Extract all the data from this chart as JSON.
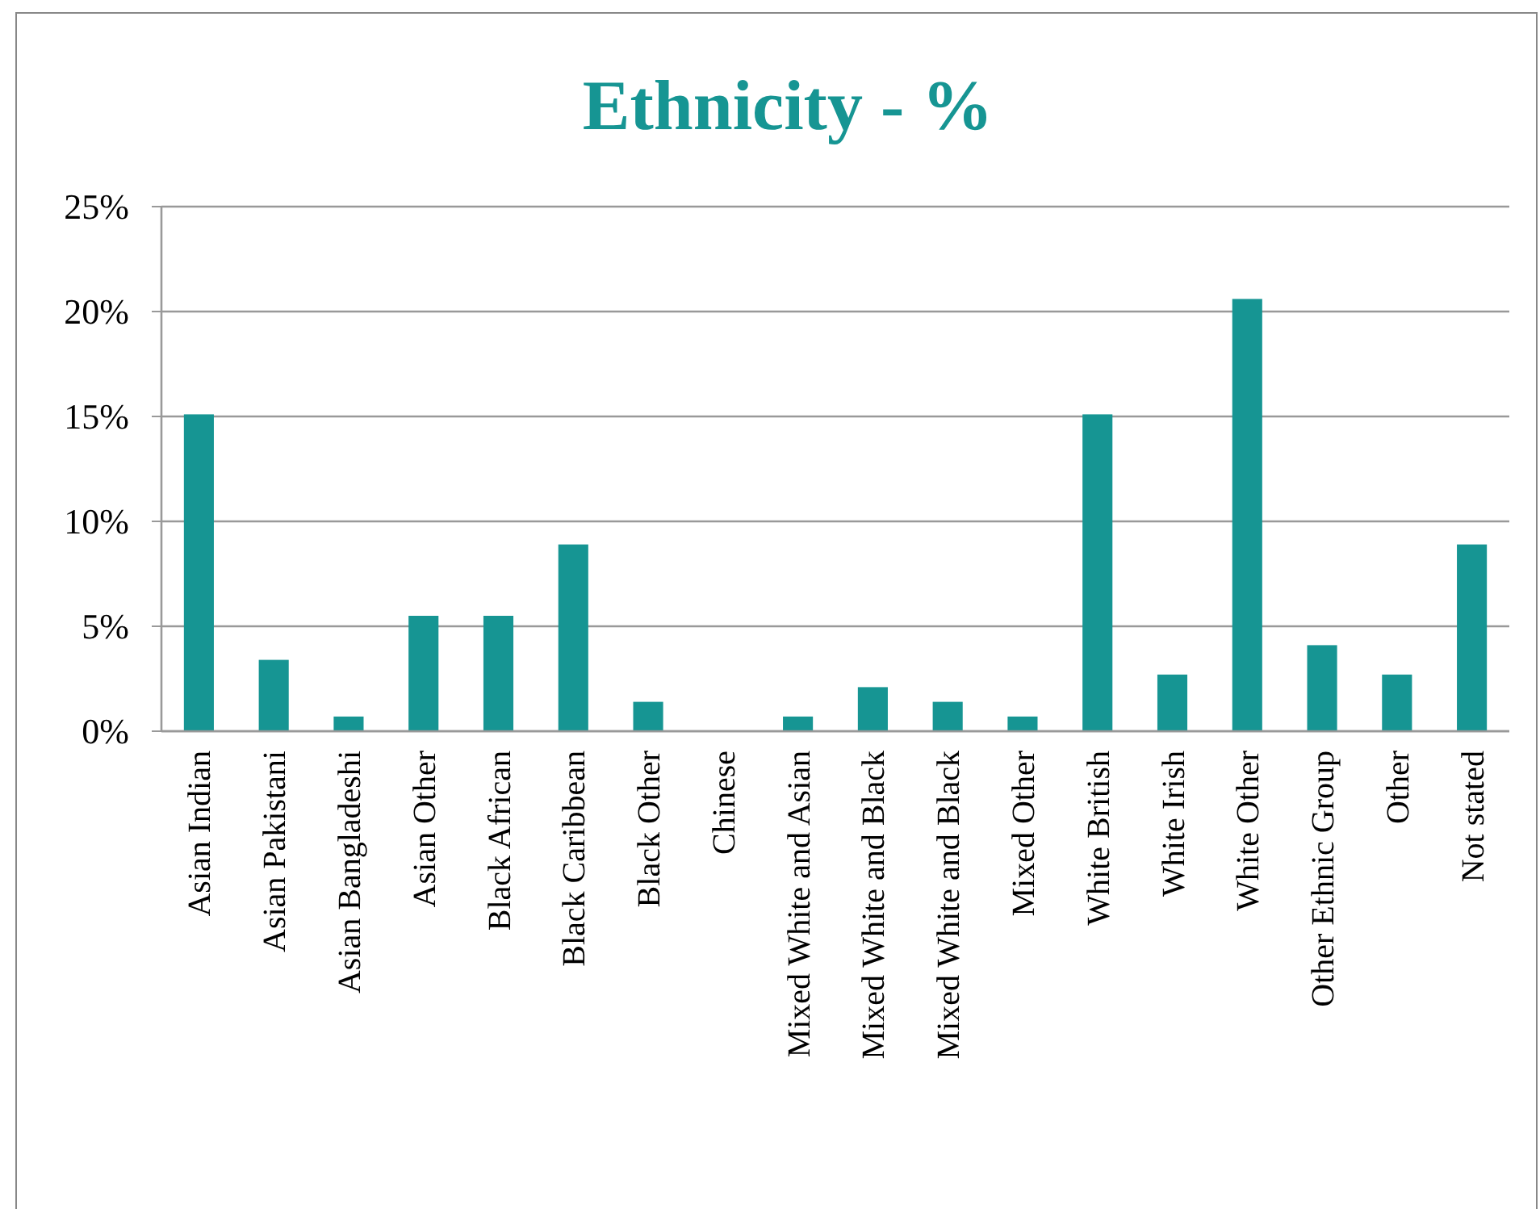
{
  "chart_data": {
    "type": "bar",
    "title": "Ethnicity - %",
    "categories": [
      "Asian Indian",
      "Asian Pakistani",
      "Asian Bangladeshi",
      "Asian Other",
      "Black African",
      "Black Caribbean",
      "Black Other",
      "Chinese",
      "Mixed White and Asian",
      "Mixed White and Black",
      "Mixed White and Black",
      "Mixed Other",
      "White British",
      "White Irish",
      "White Other",
      "Other Ethnic Group",
      "Other",
      "Not stated"
    ],
    "values": [
      15.1,
      3.4,
      0.7,
      5.5,
      5.5,
      8.9,
      1.4,
      0,
      0.7,
      2.1,
      1.4,
      0.7,
      15.1,
      2.7,
      20.6,
      4.1,
      2.7,
      8.9
    ],
    "color": "#169593",
    "ylim": [
      0,
      25
    ],
    "yticks": [
      {
        "value": 0,
        "label": "0%"
      },
      {
        "value": 5,
        "label": "5%"
      },
      {
        "value": 10,
        "label": "10%"
      },
      {
        "value": 15,
        "label": "15%"
      },
      {
        "value": 20,
        "label": "20%"
      },
      {
        "value": 25,
        "label": "25%"
      }
    ],
    "grid": "y"
  }
}
